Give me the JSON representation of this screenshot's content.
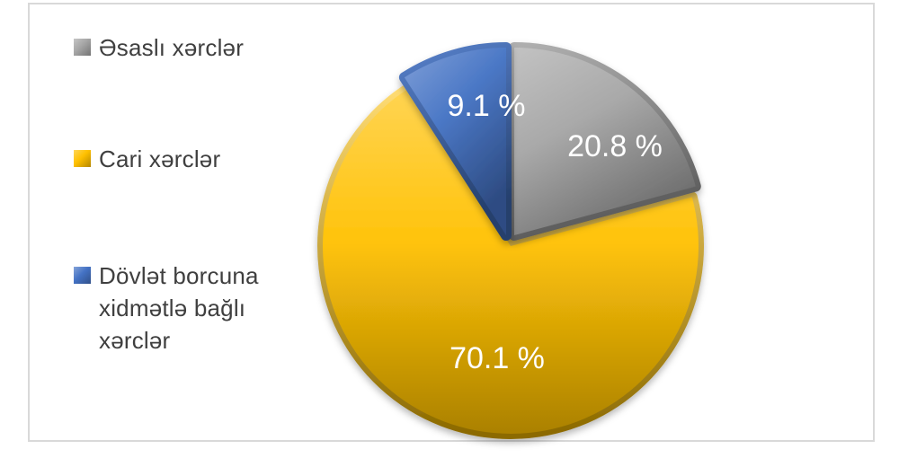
{
  "chart_data": {
    "type": "pie",
    "title": "",
    "labels": [
      "Əsaslı xərclər",
      "Cari xərclər",
      "Dövlət borcuna xidmətlə bağlı xərclər"
    ],
    "values": [
      20.8,
      70.1,
      9.1
    ],
    "data_labels": [
      "20.8 %",
      "70.1 %",
      "9.1 %"
    ],
    "units": "%",
    "colors": [
      "#A5A5A5",
      "#FFC000",
      "#4472C4"
    ],
    "start_angle_deg": 0,
    "direction": "clockwise",
    "legend_position": "left",
    "data_label_color": "#FFFFFF",
    "legend_text_color": "#3F3F3F"
  },
  "frame": {
    "border_color": "#D9D9D9",
    "background_color": "#FFFFFF"
  }
}
